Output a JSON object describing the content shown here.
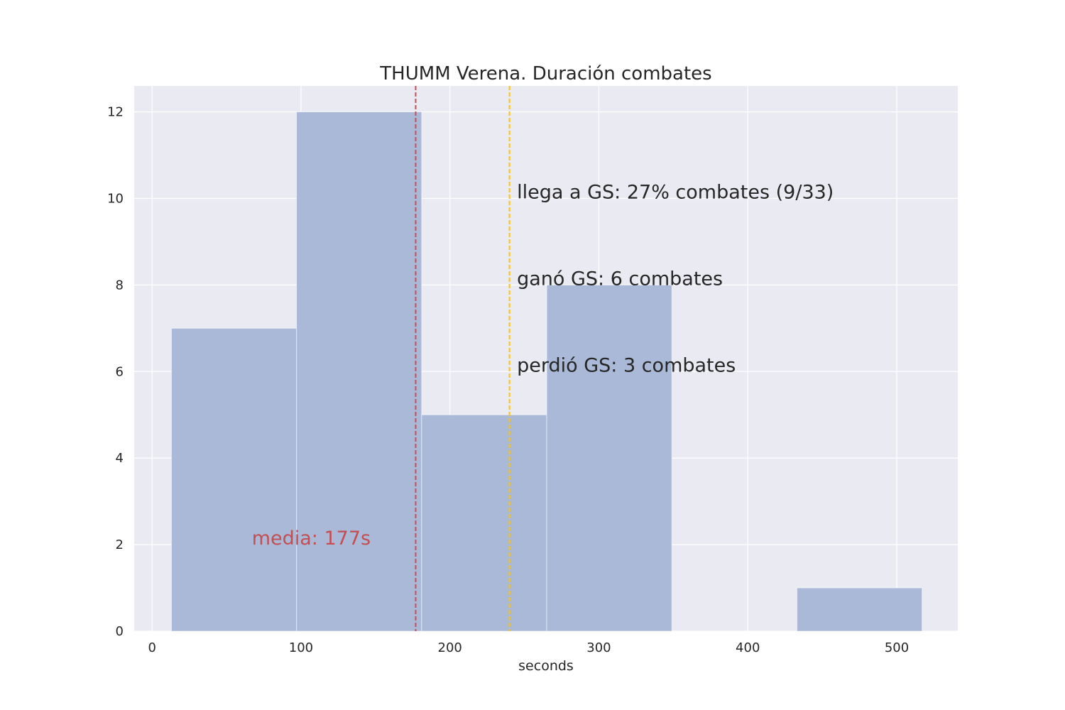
{
  "chart_data": {
    "type": "bar",
    "title": "THUMM Verena. Duración combates",
    "xlabel": "seconds",
    "ylabel": "",
    "xlim": [
      -12,
      541
    ],
    "ylim": [
      0,
      12.6
    ],
    "grid": true,
    "xticks": [
      0,
      100,
      200,
      300,
      400,
      500
    ],
    "yticks": [
      0,
      2,
      4,
      6,
      8,
      10,
      12
    ],
    "bins": [
      {
        "x0": 13,
        "x1": 97,
        "count": 7
      },
      {
        "x0": 97,
        "x1": 181,
        "count": 12
      },
      {
        "x0": 181,
        "x1": 265,
        "count": 5
      },
      {
        "x0": 265,
        "x1": 349,
        "count": 8
      },
      {
        "x0": 349,
        "x1": 433,
        "count": 0
      },
      {
        "x0": 433,
        "x1": 517,
        "count": 1
      }
    ],
    "vlines": [
      {
        "name": "media",
        "x": 177,
        "color": "#c44e52"
      },
      {
        "name": "golden-score",
        "x": 240,
        "color": "#ffc400"
      }
    ],
    "annotations": [
      {
        "name": "media-label",
        "text": "media: 177s",
        "x": 67,
        "y": 2,
        "color": "#c44e52"
      },
      {
        "name": "gs-reach-label",
        "text": "llega a GS: 27% combates (9/33)",
        "x": 245,
        "y": 10,
        "color": "#262626"
      },
      {
        "name": "gs-won-label",
        "text": "ganó GS: 6 combates",
        "x": 245,
        "y": 8,
        "color": "#262626"
      },
      {
        "name": "gs-lost-label",
        "text": "perdió GS: 3 combates",
        "x": 245,
        "y": 6,
        "color": "#262626"
      }
    ],
    "colors": {
      "plot_bg": "#eaeaf2",
      "grid": "#ffffff",
      "bar": "#a9b9d7",
      "text": "#262626"
    }
  }
}
